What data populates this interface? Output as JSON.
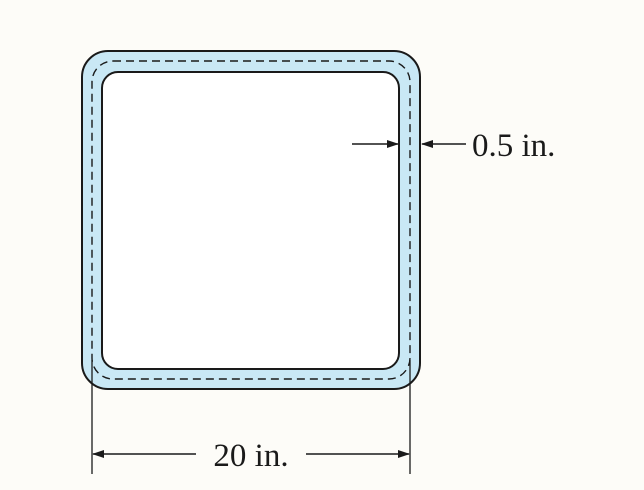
{
  "labels": {
    "thickness": "0.5 in.",
    "width": "20 in."
  },
  "colors": {
    "background": "#fdfcf8",
    "tube_fill": "#c9e8f5",
    "inner_fill": "#ffffff",
    "stroke": "#1a1a1a"
  }
}
